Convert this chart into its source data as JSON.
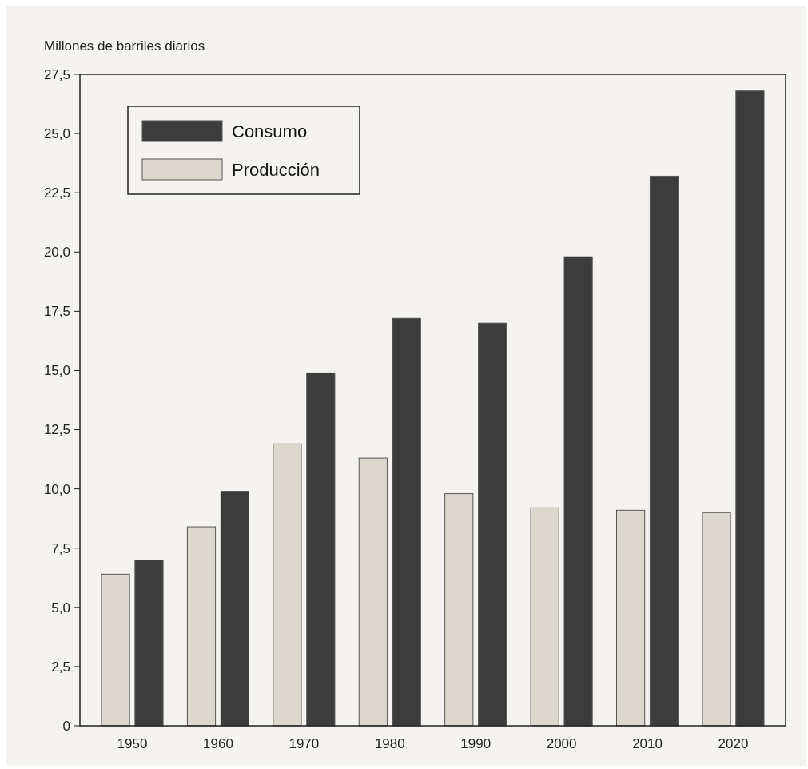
{
  "chart_data": {
    "type": "bar",
    "ylabel": "Millones de barriles diarios",
    "categories": [
      "1950",
      "1960",
      "1970",
      "1980",
      "1990",
      "2000",
      "2010",
      "2020"
    ],
    "series": [
      {
        "name": "Consumo",
        "color": "#3c3c3c",
        "values": [
          7.0,
          9.9,
          14.9,
          17.2,
          17.0,
          19.8,
          23.2,
          26.8
        ]
      },
      {
        "name": "Producción",
        "color": "#dcd8d0",
        "values": [
          6.4,
          8.4,
          11.9,
          11.3,
          9.8,
          9.2,
          9.1,
          9.0
        ]
      }
    ],
    "ylim": [
      0,
      27.5
    ],
    "yticks": [
      0,
      {
        "value": 2.5,
        "label": "2,5"
      },
      {
        "value": 5,
        "label": "5,0"
      },
      {
        "value": 7.5,
        "label": "7,5"
      },
      {
        "value": 10,
        "label": "10,0"
      },
      {
        "value": 12.5,
        "label": "12,5"
      },
      {
        "value": 15,
        "label": "15,0"
      },
      {
        "value": 17.5,
        "label": "17,5"
      },
      {
        "value": 20,
        "label": "20,0"
      },
      {
        "value": 22.5,
        "label": "22,5"
      },
      {
        "value": 25,
        "label": "25,0"
      },
      {
        "value": 27.5,
        "label": "27,5"
      }
    ],
    "legend": "top left",
    "grid": false
  }
}
